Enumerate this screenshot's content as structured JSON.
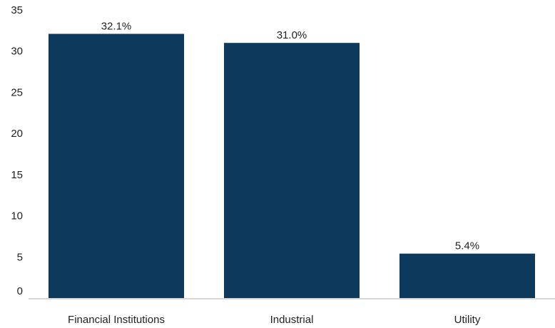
{
  "chart_data": {
    "type": "bar",
    "categories": [
      "Financial Institutions",
      "Industrial",
      "Utility"
    ],
    "values": [
      32.1,
      31.0,
      5.4
    ],
    "data_labels": [
      "32.1%",
      "31.0%",
      "5.4%"
    ],
    "title": "",
    "xlabel": "",
    "ylabel": "",
    "ylim": [
      0,
      35
    ],
    "yticks": [
      0,
      5,
      10,
      15,
      20,
      25,
      30,
      35
    ],
    "grid": false,
    "legend": "none",
    "bar_color": "#0d3a5c",
    "axis_color": "#b0b0b0"
  }
}
